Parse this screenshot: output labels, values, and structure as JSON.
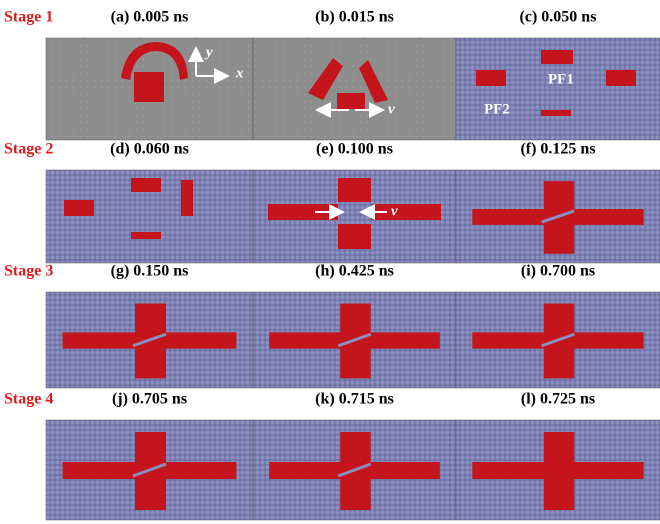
{
  "stages": [
    {
      "label": "Stage 1",
      "panels": [
        {
          "title": "(a) 0.005 ns",
          "annotations": [
            "y",
            "x"
          ]
        },
        {
          "title": "(b) 0.015 ns",
          "annotations": [
            "v"
          ]
        },
        {
          "title": "(c) 0.050 ns",
          "annotations": [
            "PF1",
            "PF2"
          ]
        }
      ]
    },
    {
      "label": "Stage 2",
      "panels": [
        {
          "title": "(d) 0.060 ns"
        },
        {
          "title": "(e) 0.100 ns",
          "annotations": [
            "v"
          ]
        },
        {
          "title": "(f) 0.125 ns"
        }
      ]
    },
    {
      "label": "Stage 3",
      "panels": [
        {
          "title": "(g) 0.150 ns"
        },
        {
          "title": "(h) 0.425 ns"
        },
        {
          "title": "(i) 0.700 ns"
        }
      ]
    },
    {
      "label": "Stage 4",
      "panels": [
        {
          "title": "(j) 0.705 ns"
        },
        {
          "title": "(k) 0.715 ns"
        },
        {
          "title": "(l) 0.725 ns"
        }
      ]
    }
  ]
}
